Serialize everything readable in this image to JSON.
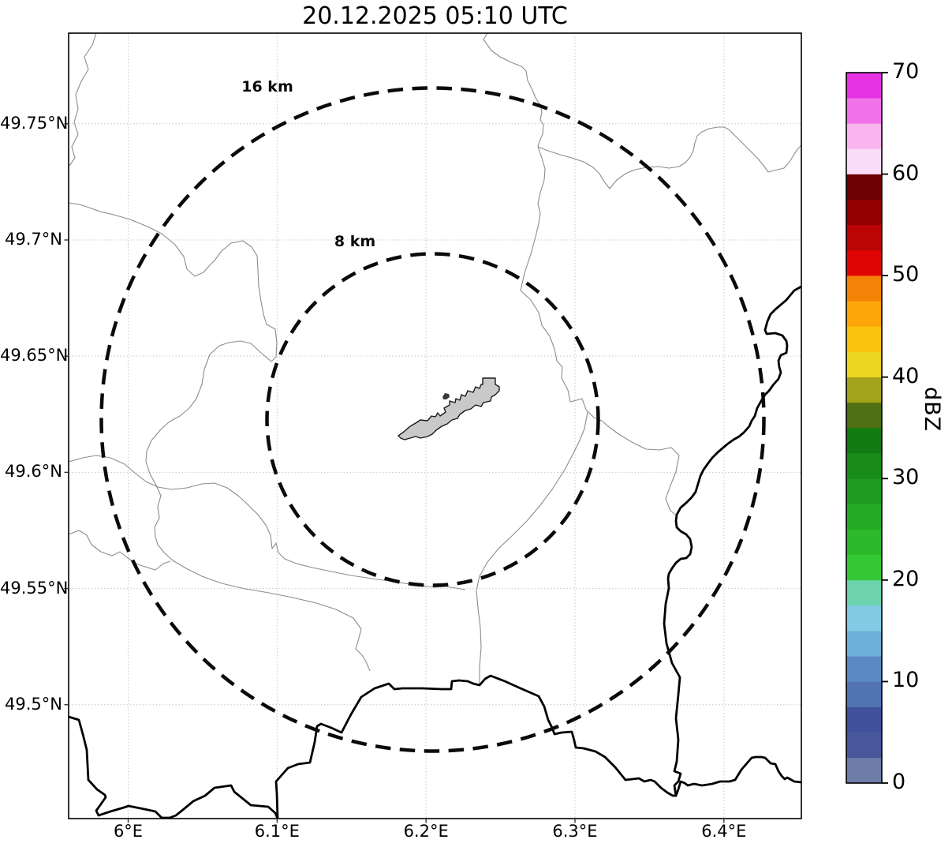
{
  "title": "20.12.2025 05:10 UTC",
  "map": {
    "extent": {
      "lon_min": 5.96,
      "lon_max": 6.452,
      "lat_min": 49.451,
      "lat_max": 49.789
    },
    "radar_center": {
      "lon": 6.204,
      "lat": 49.623
    },
    "x_axis": {
      "ticks": [
        {
          "value": 6.0,
          "label": "6°E"
        },
        {
          "value": 6.1,
          "label": "6.1°E"
        },
        {
          "value": 6.2,
          "label": "6.2°E"
        },
        {
          "value": 6.3,
          "label": "6.3°E"
        },
        {
          "value": 6.4,
          "label": "6.4°E"
        }
      ]
    },
    "y_axis": {
      "ticks": [
        {
          "value": 49.75,
          "label": "49.75°N"
        },
        {
          "value": 49.7,
          "label": "49.7°N"
        },
        {
          "value": 49.65,
          "label": "49.65°N"
        },
        {
          "value": 49.6,
          "label": "49.6°N"
        },
        {
          "value": 49.55,
          "label": "49.55°N"
        },
        {
          "value": 49.5,
          "label": "49.5°N"
        }
      ]
    },
    "range_rings": [
      {
        "label": "16 km",
        "radius_km": 16
      },
      {
        "label": "8 km",
        "radius_km": 8
      }
    ]
  },
  "colorbar": {
    "label": "dBZ",
    "min": 0,
    "max": 70,
    "step_dbz": 2.5,
    "ticks": [
      {
        "value": 0,
        "label": "0"
      },
      {
        "value": 10,
        "label": "10"
      },
      {
        "value": 20,
        "label": "20"
      },
      {
        "value": 30,
        "label": "30"
      },
      {
        "value": 40,
        "label": "40"
      },
      {
        "value": 50,
        "label": "50"
      },
      {
        "value": 60,
        "label": "60"
      },
      {
        "value": 70,
        "label": "70"
      }
    ],
    "colors": [
      "#6e7ca8",
      "#49589d",
      "#40509a",
      "#5273b2",
      "#5b8ac3",
      "#6fb0d9",
      "#83cbe4",
      "#6cd3ae",
      "#35c835",
      "#2cb92c",
      "#25aa25",
      "#1f9b1f",
      "#198c19",
      "#127b12",
      "#516f13",
      "#a3a31b",
      "#ecd51f",
      "#fbc50f",
      "#fca60a",
      "#f28306",
      "#e00505",
      "#bb0404",
      "#920000",
      "#6d0000",
      "#fbdcf7",
      "#f8b5ef",
      "#f172e9",
      "#e632e0"
    ]
  }
}
